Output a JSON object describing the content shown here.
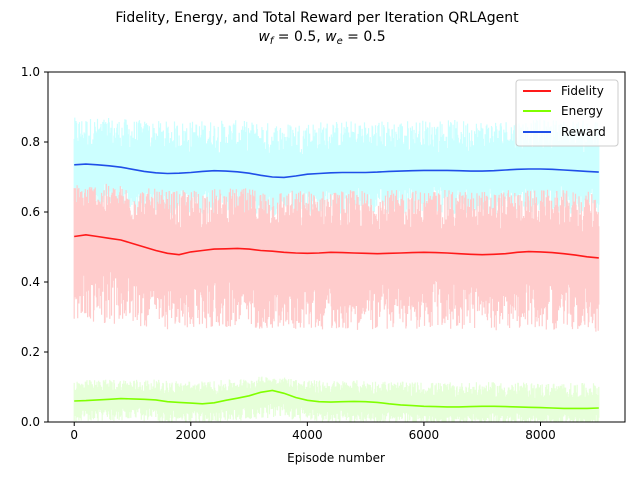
{
  "chart_data": {
    "type": "line",
    "title_line1": "Fidelity, Energy, and Total Reward per Iteration QRLAgent",
    "title_line2_parts": {
      "wf_symbol": "w",
      "wf_sub": "f",
      "wf_value": " = 0.5, ",
      "we_symbol": "w",
      "we_sub": "e",
      "we_value": " = 0.5"
    },
    "xlabel": "Episode number",
    "ylabel": "",
    "xlim": [
      -450,
      9450
    ],
    "ylim": [
      0.0,
      1.0
    ],
    "xticks": [
      0,
      2000,
      4000,
      6000,
      8000
    ],
    "xtick_labels": [
      "0",
      "2000",
      "4000",
      "6000",
      "8000"
    ],
    "yticks": [
      0.0,
      0.2,
      0.4,
      0.6,
      0.8,
      1.0
    ],
    "ytick_labels": [
      "0.0",
      "0.2",
      "0.4",
      "0.6",
      "0.8",
      "1.0"
    ],
    "grid": false,
    "legend_position": "top-right",
    "colors": {
      "fidelity": "#ff1a1a",
      "energy": "#80ff00",
      "reward": "#1f4fe8",
      "fidelity_raw": "#ffcccc",
      "energy_raw": "#e6ffd9",
      "reward_raw": "#ccffff"
    },
    "x": [
      0,
      200,
      400,
      600,
      800,
      1000,
      1200,
      1400,
      1600,
      1800,
      2000,
      2200,
      2400,
      2600,
      2800,
      3000,
      3200,
      3400,
      3600,
      3800,
      4000,
      4200,
      4400,
      4600,
      4800,
      5000,
      5200,
      5400,
      5600,
      5800,
      6000,
      6200,
      6400,
      6600,
      6800,
      7000,
      7200,
      7400,
      7600,
      7800,
      8000,
      8200,
      8400,
      8600,
      8800,
      9000
    ],
    "series": [
      {
        "name": "Fidelity",
        "values": [
          0.53,
          0.535,
          0.53,
          0.525,
          0.52,
          0.51,
          0.5,
          0.49,
          0.482,
          0.478,
          0.486,
          0.49,
          0.494,
          0.495,
          0.496,
          0.494,
          0.49,
          0.488,
          0.485,
          0.483,
          0.482,
          0.483,
          0.485,
          0.484,
          0.483,
          0.482,
          0.481,
          0.482,
          0.483,
          0.484,
          0.485,
          0.484,
          0.483,
          0.481,
          0.479,
          0.478,
          0.479,
          0.481,
          0.485,
          0.487,
          0.486,
          0.484,
          0.481,
          0.477,
          0.472,
          0.469
        ],
        "raw_band": {
          "low": 0.25,
          "high": 0.65
        }
      },
      {
        "name": "Energy",
        "values": [
          0.06,
          0.061,
          0.063,
          0.065,
          0.067,
          0.066,
          0.065,
          0.063,
          0.058,
          0.056,
          0.054,
          0.052,
          0.055,
          0.062,
          0.068,
          0.075,
          0.085,
          0.09,
          0.082,
          0.07,
          0.062,
          0.058,
          0.057,
          0.058,
          0.059,
          0.058,
          0.056,
          0.052,
          0.049,
          0.047,
          0.045,
          0.044,
          0.043,
          0.043,
          0.044,
          0.045,
          0.045,
          0.044,
          0.043,
          0.042,
          0.041,
          0.04,
          0.039,
          0.039,
          0.039,
          0.04
        ],
        "raw_band": {
          "low": 0.0,
          "high": 0.12
        }
      },
      {
        "name": "Reward",
        "values": [
          0.735,
          0.737,
          0.735,
          0.732,
          0.728,
          0.722,
          0.716,
          0.712,
          0.71,
          0.711,
          0.713,
          0.716,
          0.718,
          0.717,
          0.715,
          0.711,
          0.705,
          0.7,
          0.699,
          0.703,
          0.708,
          0.71,
          0.712,
          0.713,
          0.713,
          0.713,
          0.714,
          0.716,
          0.717,
          0.718,
          0.719,
          0.719,
          0.719,
          0.718,
          0.717,
          0.717,
          0.718,
          0.72,
          0.722,
          0.723,
          0.723,
          0.722,
          0.72,
          0.718,
          0.716,
          0.714
        ],
        "raw_band": {
          "low": 0.6,
          "high": 0.87
        }
      }
    ]
  }
}
